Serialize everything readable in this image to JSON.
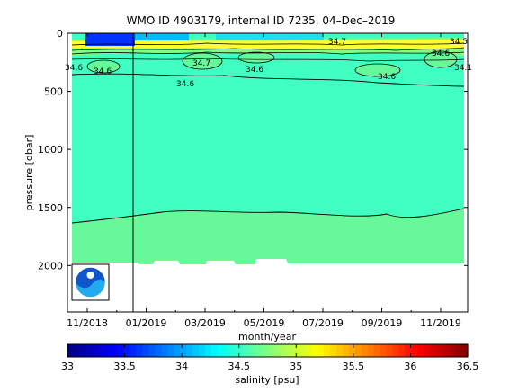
{
  "chart_data": {
    "type": "heatmap",
    "title": "WMO ID 4903179, internal ID 7235, 04–Dec–2019",
    "xlabel": "month/year",
    "ylabel": "pressure [dbar]",
    "x_ticks": [
      "11/2018",
      "01/2019",
      "03/2019",
      "05/2019",
      "07/2019",
      "09/2019",
      "11/2019"
    ],
    "y_ticks": [
      0,
      500,
      1000,
      1500,
      2000
    ],
    "ylim": [
      0,
      2400
    ],
    "y_reversed": true,
    "grid": false,
    "colorbar": {
      "label": "salinity [psu]",
      "ticks": [
        "33",
        "33.5",
        "34",
        "34.5",
        "35",
        "35.5",
        "36",
        "36.5"
      ],
      "range": [
        33,
        36.5
      ]
    },
    "regions": [
      {
        "depth_range": [
          0,
          200
        ],
        "salinity": "mixed, ~33.5–35 (layered)"
      },
      {
        "depth_range": [
          200,
          1600
        ],
        "salinity": 34.55
      },
      {
        "depth_range": [
          1600,
          2000
        ],
        "salinity": 34.75
      }
    ],
    "contour_labels": [
      "34.6",
      "34.6",
      "34.7",
      "34.6",
      "34.6",
      "34.6",
      "34.1",
      "34.7",
      "34.6",
      "34.5"
    ],
    "marker_line_date": "12/2018",
    "logo": "NOAA"
  },
  "colors": {
    "mid_water": "#40FFC0",
    "deep_water": "#66F899",
    "surface_blue": "#0033FF",
    "surface_yellow": "#FFFF33"
  }
}
